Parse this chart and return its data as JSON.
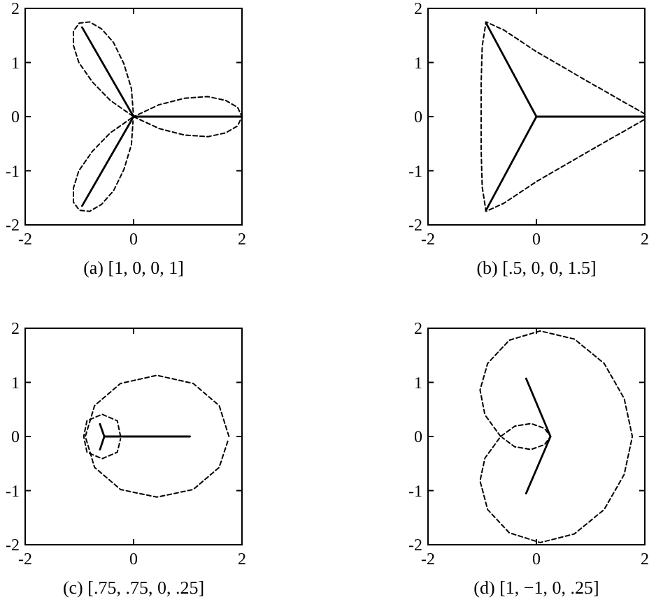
{
  "chart_data": [
    {
      "type": "line",
      "xlabel": "(a) [1, 0, 0, 1]",
      "xlim": [
        -2,
        2
      ],
      "ylim": [
        -2,
        2
      ],
      "xticks": [
        -2,
        0,
        2
      ],
      "yticks": [
        -2,
        -1,
        0,
        1,
        2
      ],
      "series": [
        {
          "color": "#000000",
          "line_style": "solid",
          "x": [
            2,
            0,
            -0.95,
            0,
            -0.95
          ],
          "values": [
            0,
            0,
            1.65,
            0,
            -1.65
          ]
        },
        {
          "color": "#000000",
          "line_style": "dashed",
          "x": [
            0,
            0.47,
            0.94,
            1.37,
            1.7,
            1.92,
            2,
            1.92,
            1.7,
            1.37,
            0.94,
            0.47,
            0,
            -0.04,
            -0.18,
            -0.37,
            -0.59,
            -0.81,
            -1,
            -1.11,
            -1.11,
            -1.01,
            -0.76,
            -0.43,
            0,
            -0.43,
            -0.76,
            -1.01,
            -1.11,
            -1.11,
            -1,
            -0.81,
            -0.59,
            -0.37,
            -0.18,
            -0.04,
            -0.01
          ],
          "values": [
            0,
            -0.22,
            -0.34,
            -0.37,
            -0.3,
            -0.17,
            0,
            0.17,
            0.3,
            0.37,
            0.34,
            0.22,
            0,
            0.52,
            0.98,
            1.37,
            1.62,
            1.75,
            1.73,
            1.58,
            1.32,
            1,
            0.64,
            0.3,
            0,
            -0.3,
            -0.64,
            -1,
            -1.32,
            -1.58,
            -1.73,
            -1.75,
            -1.62,
            -1.37,
            -0.98,
            -0.52,
            -0.08
          ]
        }
      ]
    },
    {
      "type": "line",
      "xlabel": "(b) [.5, 0, 0, 1.5]",
      "xlim": [
        -2,
        2
      ],
      "ylim": [
        -2,
        2
      ],
      "xticks": [
        -2,
        0,
        2
      ],
      "yticks": [
        -2,
        -1,
        0,
        1,
        2
      ],
      "series": [
        {
          "color": "#000000",
          "line_style": "solid",
          "x": [
            2,
            0,
            -0.93,
            0,
            -0.93
          ],
          "values": [
            0,
            0,
            1.73,
            0,
            -1.73
          ]
        },
        {
          "color": "#000000",
          "line_style": "dashed",
          "x": [
            2,
            1,
            0,
            -0.6,
            -0.93,
            -1,
            -1.02,
            -1.02,
            -1.02,
            -1,
            -0.93,
            -0.6,
            0,
            1,
            2
          ],
          "values": [
            0.05,
            0.62,
            1.2,
            1.6,
            1.75,
            1.3,
            0.6,
            0,
            -0.6,
            -1.3,
            -1.75,
            -1.6,
            -1.2,
            -0.62,
            -0.05
          ]
        }
      ]
    },
    {
      "type": "line",
      "xlabel": "(c) [.75, .75, 0, .25]",
      "xlim": [
        -2,
        2
      ],
      "ylim": [
        -2,
        2
      ],
      "xticks": [
        -2,
        0,
        2
      ],
      "yticks": [
        -2,
        -1,
        0,
        1,
        2
      ],
      "series": [
        {
          "color": "#000000",
          "line_style": "solid",
          "x": [
            1.04,
            -0.54,
            -0.62,
            -0.54,
            -0.62
          ],
          "values": [
            0,
            0,
            0.23,
            0,
            -0.24
          ]
        },
        {
          "color": "#000000",
          "line_style": "dashed",
          "x": [
            1.76,
            1.58,
            1.1,
            0.43,
            -0.24,
            -0.72,
            -0.89,
            -0.72,
            -0.24,
            0.43,
            1.1,
            1.58,
            1.75
          ],
          "values": [
            0,
            0.57,
            0.98,
            1.13,
            0.98,
            0.57,
            0,
            -0.57,
            -0.98,
            -1.12,
            -0.98,
            -0.57,
            -0.05
          ]
        },
        {
          "color": "#000000",
          "line_style": "dashed",
          "x": [
            -0.24,
            -0.3,
            -0.58,
            -0.86,
            -0.92,
            -0.86,
            -0.58,
            -0.3,
            -0.24
          ],
          "values": [
            0,
            0.29,
            0.41,
            0.29,
            0,
            -0.29,
            -0.41,
            -0.29,
            -0.04
          ]
        }
      ]
    },
    {
      "type": "line",
      "xlabel": "(d) [1, −1, 0, .25]",
      "xlim": [
        -2,
        2
      ],
      "ylim": [
        -2,
        2
      ],
      "xticks": [
        -2,
        0,
        2
      ],
      "yticks": [
        -2,
        -1,
        0,
        1,
        2
      ],
      "series": [
        {
          "color": "#000000",
          "line_style": "solid",
          "x": [
            -0.19,
            0.26,
            -0.19
          ],
          "values": [
            1.07,
            0,
            -1.05
          ]
        },
        {
          "color": "#000000",
          "line_style": "dashed",
          "x": [
            -0.66,
            -0.95,
            -1.04,
            -0.9,
            -0.5,
            0.07,
            0.7,
            1.25,
            1.62,
            1.77,
            1.62,
            1.25,
            0.7,
            0.07,
            -0.5,
            -0.9,
            -1.04,
            -0.95,
            -0.66,
            -0.4,
            -0.1,
            0.15,
            0.26,
            0.15,
            -0.1,
            -0.4,
            -0.63
          ],
          "values": [
            0,
            0.4,
            0.86,
            1.35,
            1.78,
            1.95,
            1.8,
            1.35,
            0.7,
            0,
            -0.7,
            -1.35,
            -1.8,
            -1.96,
            -1.78,
            -1.35,
            -0.82,
            -0.4,
            0,
            0.19,
            0.24,
            0.15,
            0,
            -0.15,
            -0.24,
            -0.19,
            -0.02
          ]
        }
      ]
    }
  ]
}
